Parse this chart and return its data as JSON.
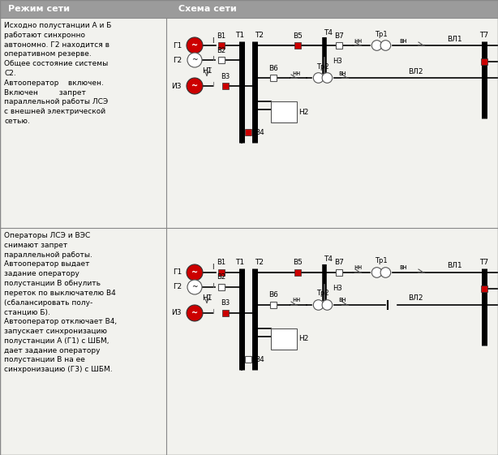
{
  "header_col1": "Режим сети",
  "header_col2": "Схема сети",
  "header_bg": "#9b9b9b",
  "row1_text": "Исходно полустанции А и Б\nработают синхронно\nавтономно. Г2 находится в\nоперативном резерве.\nОбщее состояние системы\nС2.\nАвтооператор    включен.\nВключен         запрет\nпараллельной работы ЛСЭ\nс внешней электрической\nсетью.",
  "row2_text": "Операторы ЛСЭ и ВЭС\nснимают запрет\nпараллельной работы.\nАвтооператор выдает\nзадание оператору\nполустанции В обнулить\nпереток по выключателю В4\n(сбалансировать полу-\nстанцию Б).\nАвтооператор отключает В4,\nзапускает синхронизацию\nполустанции А (Г1) с ШБМ,\nдает задание оператору\nполустанции В на ее\nсинхронизацию (Г3) с ШБМ.",
  "red_color": "#cc0000",
  "black_color": "#000000",
  "gray_color": "#888888",
  "white_color": "#ffffff"
}
